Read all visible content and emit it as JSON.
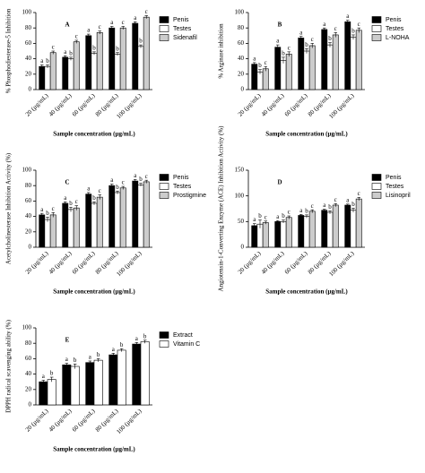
{
  "chart_data": [
    {
      "type": "bar",
      "title": "A",
      "y_label": "% Phosphodiesterase-5 Inhibition",
      "x_label": "Sample concentration (µg/mL)",
      "categories": [
        "20 (µg/mL)",
        "40 (µg/mL)",
        "60 (µg/mL)",
        "80 (µg/mL)",
        "100 (µg/mL)"
      ],
      "ylim": [
        0,
        100
      ],
      "yticks": [
        0,
        20,
        40,
        60,
        80,
        100
      ],
      "series": [
        {
          "name": "Penis",
          "color": "#000000",
          "values": [
            30,
            42,
            70,
            80,
            86
          ],
          "errors": [
            2,
            2,
            2,
            2,
            2
          ],
          "letters": [
            "a",
            "a",
            "a",
            "a",
            "a"
          ]
        },
        {
          "name": "Testes",
          "color": "#ffffff",
          "values": [
            30,
            40,
            47,
            46,
            56
          ],
          "errors": [
            2,
            2,
            2,
            2,
            2
          ],
          "letters": [
            "b",
            "b",
            "b",
            "b",
            "b"
          ]
        },
        {
          "name": "Sidenafil",
          "color": "#cccccc",
          "values": [
            48,
            62,
            74,
            80,
            94
          ],
          "errors": [
            2,
            2,
            2,
            2,
            2
          ],
          "letters": [
            "c",
            "c",
            "c",
            "c",
            "c"
          ]
        }
      ]
    },
    {
      "type": "bar",
      "title": "B",
      "y_label": "% Arginase inhibition",
      "x_label": "Sample concentration (µg/mL)",
      "categories": [
        "20 (µg/mL)",
        "40 (µg/mL)",
        "60 (µg/mL)",
        "80 (µg/mL)",
        "100 (µg/mL)"
      ],
      "ylim": [
        0,
        100
      ],
      "yticks": [
        0,
        20,
        40,
        60,
        80,
        100
      ],
      "series": [
        {
          "name": "Penis",
          "color": "#000000",
          "values": [
            33,
            55,
            67,
            78,
            88
          ],
          "errors": [
            2,
            3,
            2,
            2,
            2
          ],
          "letters": [
            "a",
            "a",
            "a",
            "a",
            "a"
          ]
        },
        {
          "name": "Testes",
          "color": "#ffffff",
          "values": [
            23,
            38,
            50,
            58,
            68
          ],
          "errors": [
            3,
            4,
            3,
            3,
            3
          ],
          "letters": [
            "b",
            "b",
            "b",
            "b",
            "b"
          ]
        },
        {
          "name": "L-NOHA",
          "color": "#cccccc",
          "values": [
            27,
            46,
            57,
            71,
            77
          ],
          "errors": [
            3,
            3,
            3,
            3,
            3
          ],
          "letters": [
            "c",
            "c",
            "c",
            "c",
            "c"
          ]
        }
      ]
    },
    {
      "type": "bar",
      "title": "C",
      "y_label": "Acetylcholinesterase Inhibition Activity (%)",
      "x_label": "Sample concentration (µg/mL)",
      "categories": [
        "20 (µg/mL)",
        "40 (µg/mL)",
        "60 (µg/mL)",
        "80 (µg/mL)",
        "100 (µg/mL)"
      ],
      "ylim": [
        0,
        100
      ],
      "yticks": [
        0,
        20,
        40,
        60,
        80,
        100
      ],
      "series": [
        {
          "name": "Penis",
          "color": "#000000",
          "values": [
            42,
            57,
            69,
            80,
            86
          ],
          "errors": [
            2,
            2,
            2,
            2,
            2
          ],
          "letters": [
            "a",
            "a",
            "a",
            "a",
            "a"
          ]
        },
        {
          "name": "Testes",
          "color": "#ffffff",
          "values": [
            36,
            49,
            57,
            71,
            81
          ],
          "errors": [
            3,
            3,
            2,
            2,
            2
          ],
          "letters": [
            "b",
            "b",
            "b",
            "b",
            "b"
          ]
        },
        {
          "name": "Prostigmine",
          "color": "#cccccc",
          "values": [
            42,
            51,
            65,
            77,
            85
          ],
          "errors": [
            3,
            3,
            3,
            2,
            2
          ],
          "letters": [
            "c",
            "c",
            "c",
            "c",
            "c"
          ]
        }
      ]
    },
    {
      "type": "bar",
      "title": "D",
      "y_label": "Angiotensin-1-Converting Enzyme (ACE) Inhibition Activity (%)",
      "x_label": "Sample concentration (µg/mL)",
      "categories": [
        "20 (µg/mL)",
        "40 (µg/mL)",
        "60 (µg/mL)",
        "80 (µg/mL)",
        "100 (µg/mL)"
      ],
      "ylim": [
        0,
        150
      ],
      "yticks": [
        0,
        50,
        100,
        150
      ],
      "series": [
        {
          "name": "Penis",
          "color": "#000000",
          "values": [
            42,
            50,
            62,
            72,
            82
          ],
          "errors": [
            4,
            2,
            2,
            2,
            2
          ],
          "letters": [
            "a",
            "a",
            "a",
            "a",
            "a"
          ]
        },
        {
          "name": "Testes",
          "color": "#ffffff",
          "values": [
            45,
            50,
            60,
            68,
            72
          ],
          "errors": [
            8,
            3,
            3,
            3,
            4
          ],
          "letters": [
            "b",
            "b",
            "b",
            "b",
            "b"
          ]
        },
        {
          "name": "Lisinopril",
          "color": "#cccccc",
          "values": [
            48,
            58,
            70,
            82,
            94
          ],
          "errors": [
            3,
            3,
            3,
            3,
            3
          ],
          "letters": [
            "c",
            "c",
            "c",
            "c",
            "c"
          ]
        }
      ]
    },
    {
      "type": "bar",
      "title": "E",
      "y_label": "DPPH radical scavenging ability (%)",
      "x_label": "Sample concentration (µg/mL)",
      "categories": [
        "20 (µg/mL)",
        "40 (µg/mL)",
        "60 (µg/mL)",
        "80 (µg/mL)",
        "100 (µg/mL)"
      ],
      "ylim": [
        0,
        100
      ],
      "yticks": [
        0,
        20,
        40,
        60,
        80,
        100
      ],
      "series": [
        {
          "name": "Extract",
          "color": "#000000",
          "values": [
            30,
            52,
            55,
            65,
            79
          ],
          "errors": [
            2,
            2,
            2,
            2,
            2
          ],
          "letters": [
            "a",
            "a",
            "a",
            "a",
            "a"
          ]
        },
        {
          "name": "Vitamin C",
          "color": "#ffffff",
          "values": [
            33,
            50,
            58,
            71,
            82
          ],
          "errors": [
            3,
            3,
            2,
            2,
            2
          ],
          "letters": [
            "b",
            "b",
            "b",
            "b",
            "b"
          ]
        }
      ]
    }
  ]
}
